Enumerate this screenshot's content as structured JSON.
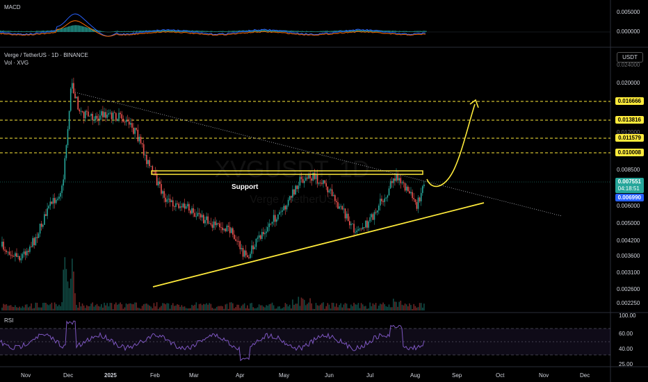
{
  "header": {
    "symbol_title": "Verge / TetherUS · 1D · BINANCE",
    "volume_title": "Vol · XVG",
    "macd_title": "MACD",
    "rsi_title": "RSI",
    "currency_button": "USDT",
    "watermark_symbol": "XVGUSDT, 1D",
    "watermark_name": "Verge / TetherUS"
  },
  "annotations": {
    "support_label": "Support"
  },
  "price_badges": {
    "current_price": "0.007551",
    "countdown": "04:18:51",
    "crosshair_price": "0.006990"
  },
  "colors": {
    "up": "#26a69a",
    "down": "#ef5350",
    "annotation": "#ffeb3b",
    "macd_line": "#2962ff",
    "signal_line": "#ff6d00",
    "rsi_line": "#7e57c2",
    "current_badge": "#26a69a",
    "crosshair_badge": "#2962ff"
  },
  "chart_data": {
    "type": "candlestick",
    "x_axis_labels": [
      "Nov",
      "Dec",
      "2025",
      "Feb",
      "Mar",
      "Apr",
      "May",
      "Jun",
      "Jul",
      "Aug",
      "Sep",
      "Oct",
      "Nov",
      "Dec"
    ],
    "price_axis_labels": [
      "0.024000",
      "0.020000",
      "0.016666",
      "0.013816",
      "0.012000",
      "0.011579",
      "0.010008",
      "0.008500",
      "0.007551",
      "0.006990",
      "0.006000",
      "0.005000",
      "0.004200",
      "0.003600",
      "0.003100",
      "0.002600",
      "0.002250"
    ],
    "price_scale": "log",
    "horizontal_levels": [
      0.016666,
      0.013816,
      0.011579,
      0.010008
    ],
    "support_level": 0.0082,
    "macd_axis_labels": [
      "0.005000",
      "0.000000"
    ],
    "rsi_axis_labels": [
      "100.00",
      "60.00",
      "40.00",
      "25.00"
    ],
    "rsi_levels": [
      70,
      50,
      30
    ],
    "price_path_approx": [
      {
        "date": "Nov",
        "close": 0.0042
      },
      {
        "date": "Dec",
        "close": 0.02
      },
      {
        "date": "2025",
        "close": 0.015
      },
      {
        "date": "Feb",
        "close": 0.008
      },
      {
        "date": "Mar",
        "close": 0.0052
      },
      {
        "date": "Apr",
        "close": 0.0039
      },
      {
        "date": "May",
        "close": 0.0085
      },
      {
        "date": "Jun",
        "close": 0.0062
      },
      {
        "date": "Jul",
        "close": 0.0049
      },
      {
        "date": "Jul-late",
        "close": 0.0085
      },
      {
        "date": "Aug",
        "close": 0.007551
      }
    ],
    "projection": "rising arrow toward 0.016666"
  }
}
